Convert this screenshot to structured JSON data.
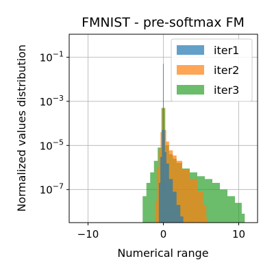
{
  "chart_data": {
    "type": "histogram",
    "title": "FMNIST - pre-softmax FM",
    "xlabel": "Numerical range",
    "ylabel": "Normalized values distribution",
    "xlim": [
      -12.5,
      12.5
    ],
    "ylim": [
      3.16e-09,
      1.1
    ],
    "yscale": "log",
    "grid": true,
    "legend_position": "top-right",
    "xticks": [
      {
        "value": -10,
        "label": "−10"
      },
      {
        "value": 0,
        "label": "0"
      },
      {
        "value": 10,
        "label": "10"
      }
    ],
    "yticks": [
      {
        "value": 0.1,
        "base": "10",
        "exp": "−1"
      },
      {
        "value": 0.001,
        "base": "10",
        "exp": "−3"
      },
      {
        "value": 1e-05,
        "base": "10",
        "exp": "−5"
      },
      {
        "value": 1e-07,
        "base": "10",
        "exp": "−7"
      }
    ],
    "series": [
      {
        "name": "iter3",
        "color": "#2ca02c",
        "opacity": 0.7,
        "x": [
          -3.0,
          -2.5,
          -2.0,
          -1.5,
          -1.0,
          -0.5,
          0.0,
          0.5,
          1.0,
          1.5,
          2.0,
          3.0,
          4.0,
          5.0,
          6.0,
          7.0,
          8.0,
          9.0,
          10.0,
          10.8
        ],
        "y": [
          3e-09,
          5e-08,
          2e-07,
          6e-07,
          2e-06,
          8e-06,
          0.0005,
          1e-05,
          4e-06,
          2.5e-06,
          1.6e-06,
          9e-07,
          6e-07,
          4e-07,
          3e-07,
          2e-07,
          1e-07,
          5e-08,
          2.5e-08,
          8e-09
        ]
      },
      {
        "name": "iter2",
        "color": "#ff7f0e",
        "opacity": 0.7,
        "x": [
          -1.2,
          -1.0,
          -0.75,
          -0.5,
          -0.25,
          0.0,
          0.25,
          0.5,
          1.0,
          1.5,
          2.0,
          3.0,
          4.0,
          5.0,
          5.5,
          5.9
        ],
        "y": [
          3e-09,
          3e-08,
          1e-06,
          6e-06,
          4e-05,
          0.0005,
          5e-05,
          1.5e-05,
          6e-06,
          3.5e-06,
          2e-06,
          8e-07,
          3e-07,
          8e-08,
          2e-08,
          5e-09
        ]
      },
      {
        "name": "iter1",
        "color": "#1f77b4",
        "opacity": 0.7,
        "x": [
          -0.7,
          -0.5,
          -0.3,
          -0.1,
          0.0,
          0.1,
          0.3,
          0.5,
          1.0,
          1.5,
          2.0,
          2.5,
          2.8
        ],
        "y": [
          3e-09,
          2e-07,
          3e-06,
          5e-05,
          0.05,
          5e-05,
          5e-06,
          1.5e-06,
          3e-07,
          8e-08,
          2e-08,
          6e-09,
          3e-09
        ]
      }
    ],
    "legend_order": [
      "iter1",
      "iter2",
      "iter3"
    ]
  }
}
